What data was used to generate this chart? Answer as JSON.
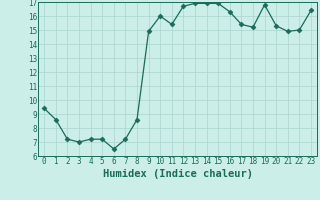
{
  "x": [
    0,
    1,
    2,
    3,
    4,
    5,
    6,
    7,
    8,
    9,
    10,
    11,
    12,
    13,
    14,
    15,
    16,
    17,
    18,
    19,
    20,
    21,
    22,
    23
  ],
  "y": [
    9.4,
    8.6,
    7.2,
    7.0,
    7.2,
    7.2,
    6.5,
    7.2,
    8.6,
    14.9,
    16.0,
    15.4,
    16.7,
    16.9,
    16.9,
    16.9,
    16.3,
    15.4,
    15.2,
    16.8,
    15.3,
    14.9,
    15.0,
    16.4
  ],
  "xlabel": "Humidex (Indice chaleur)",
  "ylim": [
    6,
    17
  ],
  "xlim_min": -0.5,
  "xlim_max": 23.5,
  "yticks": [
    6,
    7,
    8,
    9,
    10,
    11,
    12,
    13,
    14,
    15,
    16,
    17
  ],
  "xticks": [
    0,
    1,
    2,
    3,
    4,
    5,
    6,
    7,
    8,
    9,
    10,
    11,
    12,
    13,
    14,
    15,
    16,
    17,
    18,
    19,
    20,
    21,
    22,
    23
  ],
  "line_color": "#1a6b5a",
  "marker": "D",
  "marker_size": 2.5,
  "bg_color": "#cceee8",
  "grid_color": "#aad4ce",
  "tick_label_fontsize": 5.5,
  "xlabel_fontsize": 7.5
}
